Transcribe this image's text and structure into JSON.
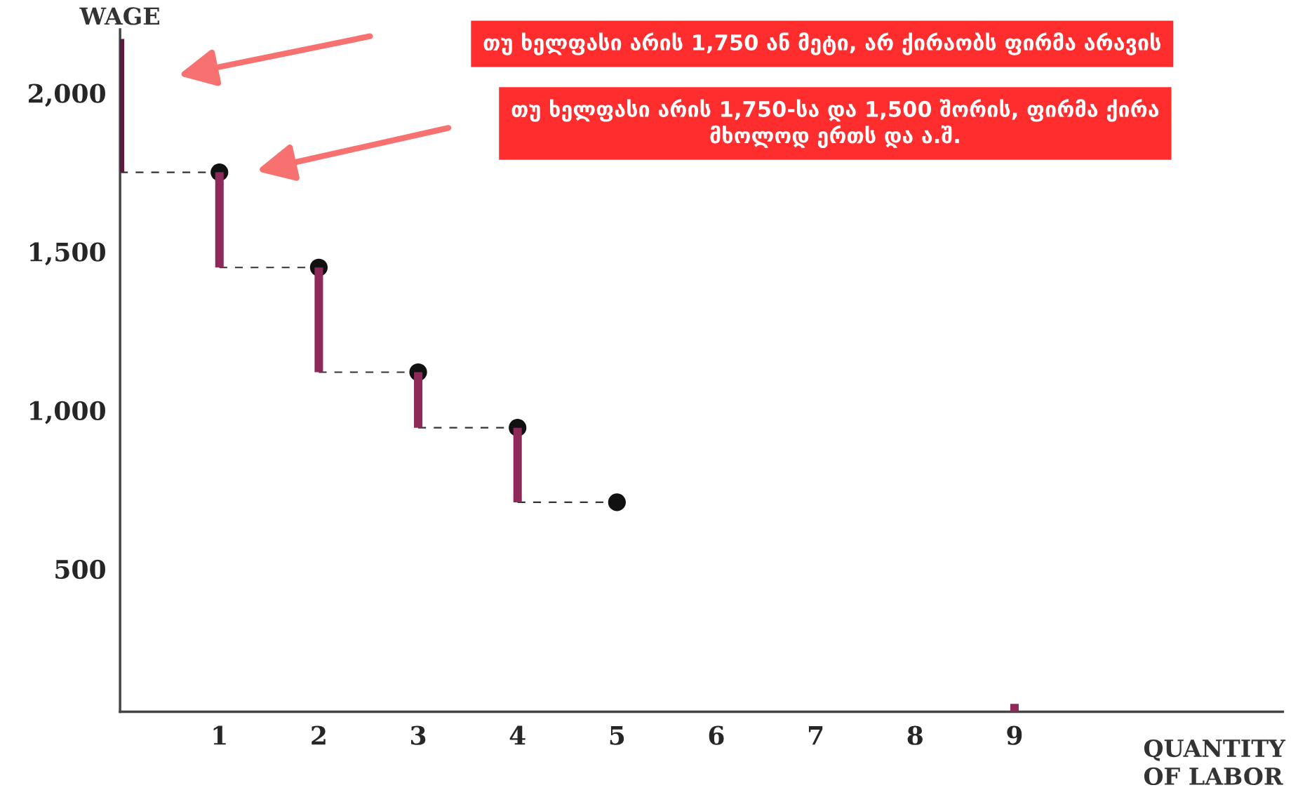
{
  "chart_data": {
    "type": "bar",
    "xlabel": "QUANTITY\nOF LABOR",
    "ylabel": "WAGE",
    "xlim": [
      0,
      11.7
    ],
    "xticks": [
      1,
      2,
      3,
      4,
      5,
      6,
      7,
      8,
      9
    ],
    "ylim": [
      50,
      2200
    ],
    "yticks": [
      {
        "value": 500,
        "label": "500"
      },
      {
        "value": 1000,
        "label": "1,000"
      },
      {
        "value": 1500,
        "label": "1,500"
      },
      {
        "value": 2000,
        "label": "2,000"
      }
    ],
    "grid": false,
    "legend": false,
    "series": [
      {
        "x": [
          0,
          1,
          2,
          3,
          4,
          9
        ],
        "base": [
          1750,
          1450,
          1120,
          945,
          710,
          50
        ],
        "values": [
          420,
          300,
          330,
          175,
          235,
          25
        ],
        "colors": [
          "#5e1a3c",
          "#8e2a5a",
          "#8e2a5a",
          "#8e2a5a",
          "#8e2a5a",
          "#8e2a5a"
        ]
      },
      {
        "type": "line",
        "x": [
          0,
          1
        ],
        "values": [
          1750,
          1750
        ],
        "color": "#333333",
        "line_style": "dashed",
        "marker": "none"
      },
      {
        "type": "line",
        "x": [
          1,
          2
        ],
        "values": [
          1450,
          1450
        ],
        "color": "#333333",
        "line_style": "dashed",
        "marker": "none"
      },
      {
        "type": "line",
        "x": [
          2,
          3
        ],
        "values": [
          1120,
          1120
        ],
        "color": "#333333",
        "line_style": "dashed",
        "marker": "none"
      },
      {
        "type": "line",
        "x": [
          3,
          4
        ],
        "values": [
          945,
          945
        ],
        "color": "#333333",
        "line_style": "dashed",
        "marker": "none"
      },
      {
        "type": "line",
        "x": [
          4,
          5
        ],
        "values": [
          710,
          710
        ],
        "color": "#333333",
        "line_style": "dashed",
        "marker": "none"
      },
      {
        "type": "scatter",
        "x": [
          1,
          2,
          3,
          4,
          5
        ],
        "values": [
          1750,
          1450,
          1120,
          945,
          710
        ],
        "color": "#111111",
        "marker": "circle"
      }
    ],
    "annotations": [
      "თუ ხელფასი არის 1,750 ან მეტი, არ ქირაობს ფირმა არავის",
      "თუ ხელფასი არის 1,750-სა და 1,500 შორის, ფირმა ქირა\nმხოლოდ ერთს და ა.შ."
    ]
  }
}
